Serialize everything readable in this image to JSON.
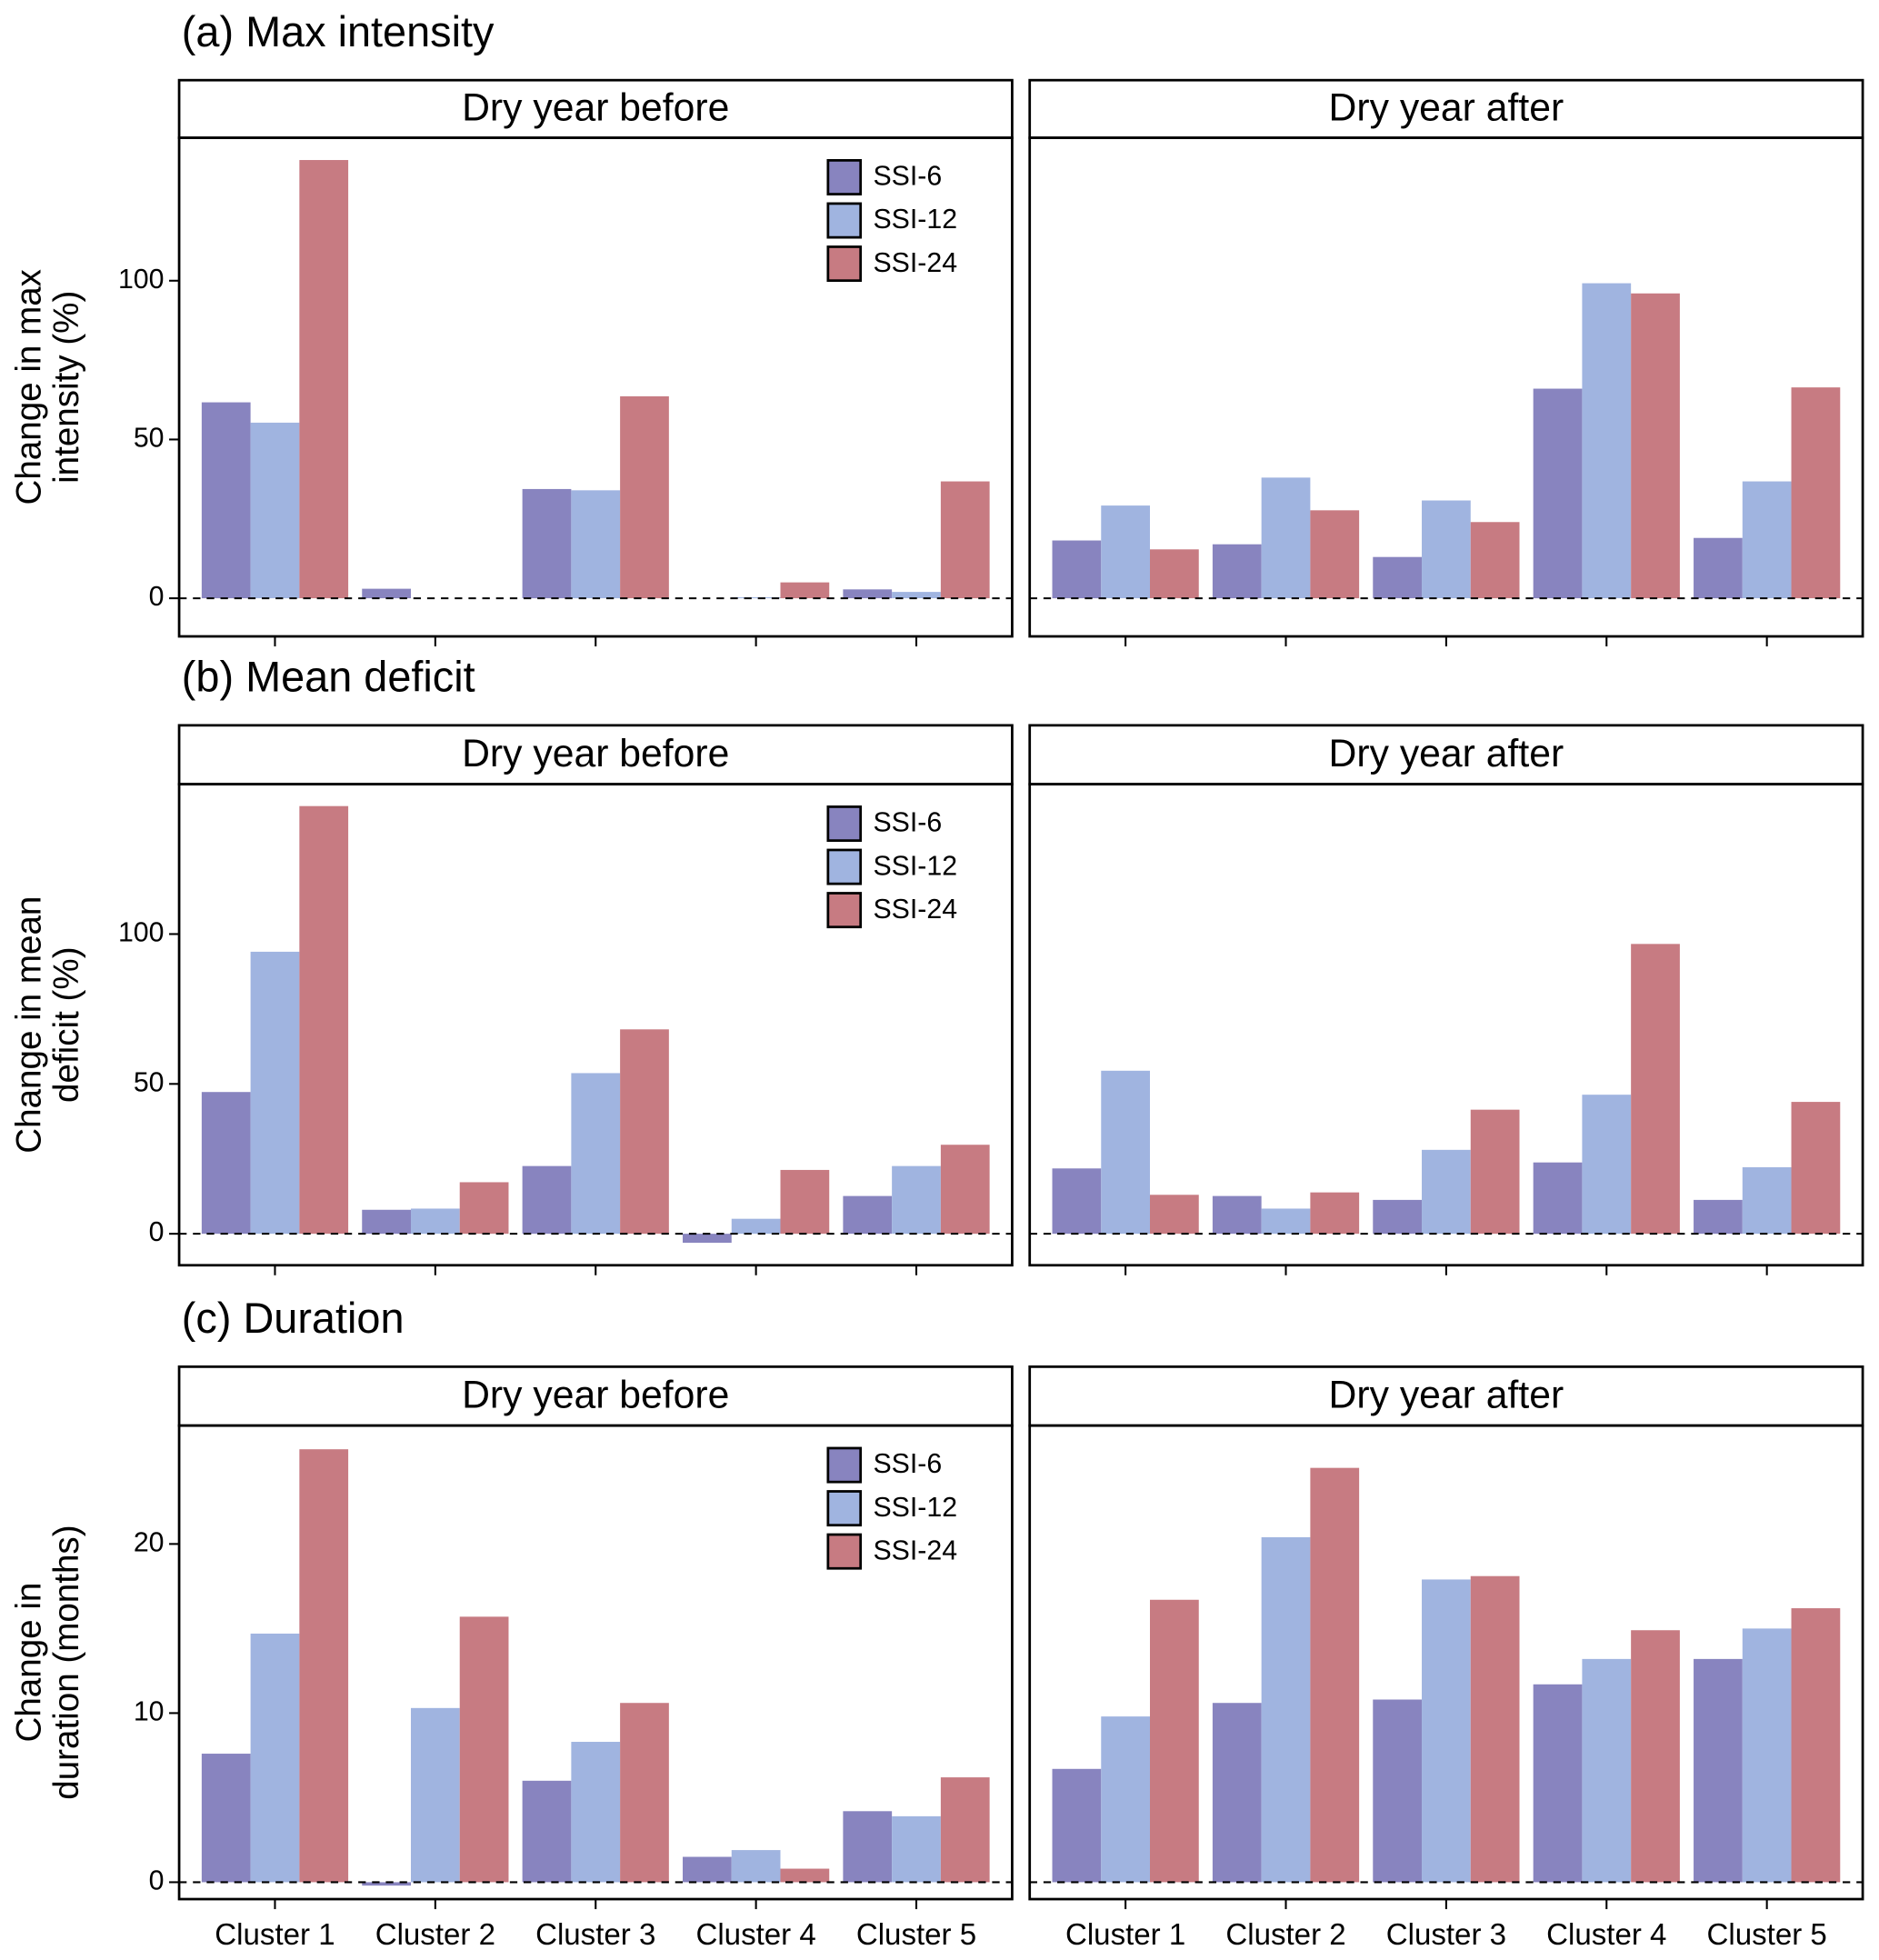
{
  "chart_data": [
    {
      "type": "bar",
      "title": "(a) Max intensity",
      "subtitle": "Dry year before",
      "ylabel": [
        "Change in max",
        "intensity (%)"
      ],
      "categories": [
        null,
        null,
        null,
        null,
        null
      ],
      "legend": "top-right",
      "series": [
        {
          "name": "SSI-6",
          "color": "#8884bf",
          "values": [
            61.7,
            3,
            34.4,
            0,
            2.8
          ]
        },
        {
          "name": "SSI-12",
          "color": "#a0b4e0",
          "values": [
            55.3,
            0,
            34,
            0.3,
            2
          ]
        },
        {
          "name": "SSI-24",
          "color": "#c77b82",
          "values": [
            138,
            0,
            63.6,
            5,
            36.8
          ]
        }
      ],
      "ylim": [
        -12,
        145
      ],
      "yticks": [
        0,
        50,
        100
      ]
    },
    {
      "type": "bar",
      "subtitle": "Dry year after",
      "categories": [
        null,
        null,
        null,
        null,
        null
      ],
      "series": [
        {
          "color": "#8884bf",
          "values": [
            18.2,
            17,
            13,
            66,
            19
          ]
        },
        {
          "color": "#a0b4e0",
          "values": [
            29.2,
            38,
            30.8,
            99.2,
            36.8
          ]
        },
        {
          "color": "#c77b82",
          "values": [
            15.4,
            27.7,
            24,
            96,
            66.4
          ]
        }
      ],
      "ylim": [
        -12,
        145
      ]
    },
    {
      "type": "bar",
      "title": "(b) Mean deficit",
      "subtitle": "Dry year before",
      "ylabel": [
        "Change in mean",
        "deficit (%)"
      ],
      "categories": [
        null,
        null,
        null,
        null,
        null
      ],
      "legend": "top-right",
      "series": [
        {
          "name": "SSI-6",
          "color": "#8884bf",
          "values": [
            47.3,
            8,
            22.6,
            -3,
            12.6
          ]
        },
        {
          "name": "SSI-12",
          "color": "#a0b4e0",
          "values": [
            94.1,
            8.4,
            53.6,
            5,
            22.6
          ]
        },
        {
          "name": "SSI-24",
          "color": "#c77b82",
          "values": [
            142.7,
            17.2,
            68.2,
            21.3,
            29.7
          ]
        }
      ],
      "ylim": [
        -10.5,
        150
      ],
      "yticks": [
        0,
        50,
        100
      ]
    },
    {
      "type": "bar",
      "subtitle": "Dry year after",
      "categories": [
        null,
        null,
        null,
        null,
        null
      ],
      "series": [
        {
          "color": "#8884bf",
          "values": [
            21.8,
            12.6,
            11.3,
            23.8,
            11.3
          ]
        },
        {
          "color": "#a0b4e0",
          "values": [
            54.4,
            8.4,
            28,
            46.4,
            22.2
          ]
        },
        {
          "color": "#c77b82",
          "values": [
            13,
            13.8,
            41.4,
            96.7,
            44
          ]
        }
      ],
      "ylim": [
        -10.5,
        150
      ]
    },
    {
      "type": "bar",
      "title": "(c) Duration",
      "subtitle": "Dry year before",
      "ylabel": [
        "Change in",
        "duration (months)"
      ],
      "categories": [
        "Cluster 1",
        "Cluster 2",
        "Cluster 3",
        "Cluster 4",
        "Cluster 5"
      ],
      "legend": "top-right",
      "series": [
        {
          "name": "SSI-6",
          "color": "#8884bf",
          "values": [
            7.6,
            -0.2,
            6,
            1.5,
            4.2
          ]
        },
        {
          "name": "SSI-12",
          "color": "#a0b4e0",
          "values": [
            14.7,
            10.3,
            8.3,
            1.9,
            3.9
          ]
        },
        {
          "name": "SSI-24",
          "color": "#c77b82",
          "values": [
            25.6,
            15.7,
            10.6,
            0.8,
            6.2
          ]
        }
      ],
      "ylim": [
        -1,
        27
      ],
      "yticks": [
        0,
        10,
        20
      ]
    },
    {
      "type": "bar",
      "subtitle": "Dry year after",
      "categories": [
        "Cluster 1",
        "Cluster 2",
        "Cluster 3",
        "Cluster 4",
        "Cluster 5"
      ],
      "series": [
        {
          "color": "#8884bf",
          "values": [
            6.7,
            10.6,
            10.8,
            11.7,
            13.2
          ]
        },
        {
          "color": "#a0b4e0",
          "values": [
            9.8,
            20.4,
            17.9,
            13.2,
            15
          ]
        },
        {
          "color": "#c77b82",
          "values": [
            16.7,
            24.5,
            18.1,
            14.9,
            16.2
          ]
        }
      ],
      "ylim": [
        -1,
        27
      ]
    }
  ]
}
